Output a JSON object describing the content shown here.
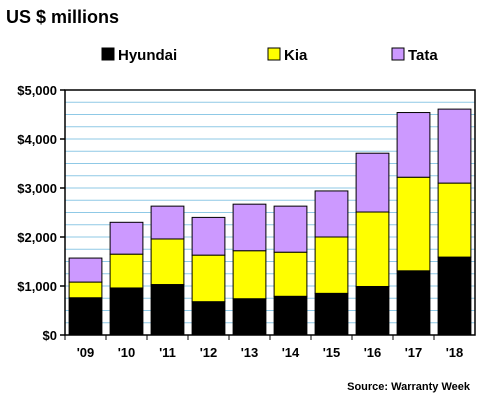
{
  "chart_data": {
    "type": "bar",
    "stacked": true,
    "title": "US $ millions",
    "categories": [
      "'09",
      "'10",
      "'11",
      "'12",
      "'13",
      "'14",
      "'15",
      "'16",
      "'17",
      "'18"
    ],
    "series": [
      {
        "name": "Hyundai",
        "color": "#000000",
        "values": [
          760,
          960,
          1030,
          680,
          740,
          790,
          850,
          990,
          1310,
          1590
        ]
      },
      {
        "name": "Kia",
        "color": "#ffff00",
        "values": [
          320,
          690,
          930,
          950,
          980,
          900,
          1150,
          1520,
          1910,
          1510
        ]
      },
      {
        "name": "Tata",
        "color": "#cc99ff",
        "values": [
          490,
          650,
          670,
          770,
          950,
          940,
          940,
          1200,
          1320,
          1510
        ]
      }
    ],
    "ylim": [
      0,
      5000
    ],
    "yticks": [
      0,
      1000,
      2000,
      3000,
      4000,
      5000
    ],
    "ytick_labels": [
      "$0",
      "$1,000",
      "$2,000",
      "$3,000",
      "$4,000",
      "$5,000"
    ],
    "grid": true,
    "legend_position": "top",
    "source": "Source: Warranty Week"
  }
}
